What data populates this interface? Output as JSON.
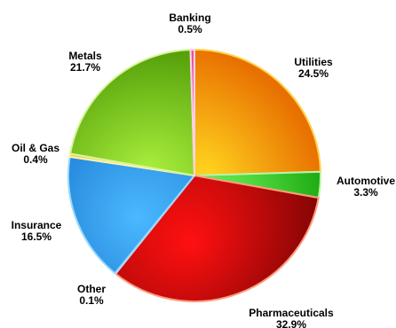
{
  "chart_data": {
    "type": "pie",
    "title": "",
    "start_angle_deg": 0,
    "direction": "clockwise",
    "slices": [
      {
        "label": "Utilities",
        "pct_text": "24.5%",
        "value": 24.5,
        "color_light": "#ffd21e",
        "color_dark": "#e87000",
        "edge": "#ffd24a"
      },
      {
        "label": "Automotive",
        "pct_text": "3.3%",
        "value": 3.3,
        "color_light": "#6cf05a",
        "color_dark": "#1aa70e",
        "edge": "#b8f5a8"
      },
      {
        "label": "Pharmaceuticals",
        "pct_text": "32.9%",
        "value": 32.9,
        "color_light": "#ff1010",
        "color_dark": "#7a0404",
        "edge": "#ff9a7a"
      },
      {
        "label": "Other",
        "pct_text": "0.1%",
        "value": 0.1,
        "color_light": "#6fd0ff",
        "color_dark": "#1a8fd8",
        "edge": "#bfe8ff"
      },
      {
        "label": "Insurance",
        "pct_text": "16.5%",
        "value": 16.5,
        "color_light": "#4bb8ff",
        "color_dark": "#0a66c2",
        "edge": "#9ad8ff"
      },
      {
        "label": "Oil & Gas",
        "pct_text": "0.4%",
        "value": 0.4,
        "color_light": "#ffe07a",
        "color_dark": "#e8b800",
        "edge": "#fff0b0"
      },
      {
        "label": "Metals",
        "pct_text": "21.7%",
        "value": 21.7,
        "color_light": "#a8ee3c",
        "color_dark": "#4e9a06",
        "edge": "#d8f59a"
      },
      {
        "label": "Banking",
        "pct_text": "0.5%",
        "value": 0.5,
        "color_light": "#ff9ad2",
        "color_dark": "#e0509a",
        "edge": "#ffd0ea"
      }
    ]
  }
}
